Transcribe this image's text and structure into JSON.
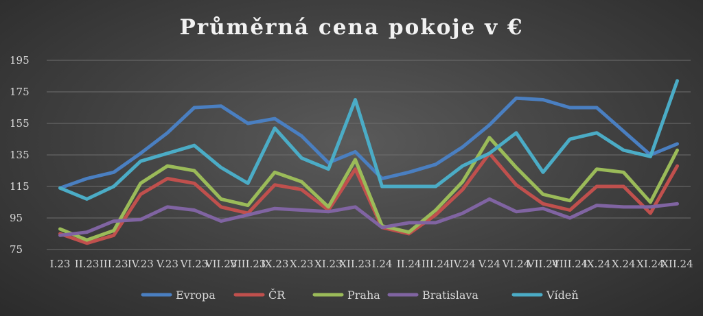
{
  "chart_data": {
    "type": "line",
    "title": "Průměrná cena pokoje v €",
    "xlabel": "",
    "ylabel": "",
    "ylim": [
      75,
      195
    ],
    "yticks": [
      75,
      95,
      115,
      135,
      155,
      175,
      195
    ],
    "grid": true,
    "legend_position": "bottom",
    "categories": [
      "I.23",
      "II.23",
      "III.23",
      "IV.23",
      "V.23",
      "VI.23",
      "VII.23",
      "VIII.23",
      "IX.23",
      "X.23",
      "XI.23",
      "XII.23",
      "I.24",
      "II.24",
      "III.24",
      "IV.24",
      "V.24",
      "VI.24",
      "VII.24",
      "VIII.24",
      "IX.24",
      "X.24",
      "XI.24",
      "XII.24"
    ],
    "series": [
      {
        "name": "Evropa",
        "color": "#4a7fc1",
        "values": [
          114,
          120,
          124,
          136,
          149,
          165,
          166,
          155,
          158,
          147,
          130,
          137,
          120,
          124,
          129,
          140,
          154,
          171,
          170,
          165,
          165,
          150,
          135,
          142
        ]
      },
      {
        "name": "ČR",
        "color": "#c0504d",
        "values": [
          85,
          79,
          84,
          110,
          120,
          117,
          102,
          98,
          116,
          113,
          100,
          126,
          89,
          85,
          97,
          113,
          136,
          116,
          104,
          100,
          115,
          115,
          98,
          128
        ]
      },
      {
        "name": "Praha",
        "color": "#9bbb59",
        "values": [
          88,
          81,
          87,
          117,
          128,
          125,
          107,
          103,
          124,
          118,
          102,
          132,
          90,
          86,
          100,
          118,
          146,
          127,
          110,
          106,
          126,
          124,
          105,
          138
        ]
      },
      {
        "name": "Bratislava",
        "color": "#8064a2",
        "values": [
          84,
          86,
          93,
          94,
          102,
          100,
          93,
          97,
          101,
          100,
          99,
          102,
          89,
          92,
          92,
          98,
          107,
          99,
          101,
          95,
          103,
          102,
          102,
          104
        ]
      },
      {
        "name": "Vídeň",
        "color": "#4bacc6",
        "values": [
          114,
          107,
          115,
          131,
          136,
          141,
          127,
          117,
          152,
          133,
          126,
          170,
          115,
          115,
          115,
          128,
          136,
          149,
          124,
          145,
          149,
          138,
          134,
          182
        ]
      }
    ]
  }
}
